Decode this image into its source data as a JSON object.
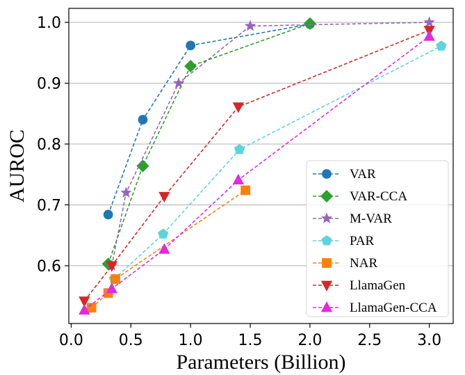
{
  "chart_data": {
    "type": "line",
    "xlabel": "Parameters (Billion)",
    "ylabel": "AUROC",
    "xlim": [
      -0.02,
      3.2
    ],
    "ylim": [
      0.505,
      1.023
    ],
    "xticks": [
      0.0,
      0.5,
      1.0,
      1.5,
      2.0,
      2.5,
      3.0
    ],
    "xtick_labels": [
      "0.0",
      "0.5",
      "1.0",
      "1.5",
      "2.0",
      "2.5",
      "3.0"
    ],
    "yticks": [
      0.6,
      0.7,
      0.8,
      0.9,
      1.0
    ],
    "ytick_labels": [
      "0.6",
      "0.7",
      "0.8",
      "0.9",
      "1.0"
    ],
    "grid": "horizontal",
    "legend_position": "bottom-right",
    "series": [
      {
        "name": "VAR",
        "color": "#1f77b4",
        "marker": "circle",
        "x": [
          0.31,
          0.6,
          1.0,
          2.0
        ],
        "y": [
          0.684,
          0.84,
          0.962,
          0.997
        ]
      },
      {
        "name": "VAR-CCA",
        "color": "#2ca02c",
        "marker": "diamond",
        "x": [
          0.31,
          0.6,
          1.0,
          2.0
        ],
        "y": [
          0.603,
          0.764,
          0.928,
          0.998
        ]
      },
      {
        "name": "M-VAR",
        "color": "#9467bd",
        "marker": "star",
        "x": [
          0.34,
          0.46,
          0.9,
          1.5,
          3.0
        ],
        "y": [
          0.6,
          0.72,
          0.9,
          0.994,
          1.0
        ]
      },
      {
        "name": "PAR",
        "color": "#5dd4dc",
        "marker": "pentagon",
        "x": [
          0.36,
          0.77,
          1.41,
          3.1
        ],
        "y": [
          0.578,
          0.652,
          0.791,
          0.961
        ]
      },
      {
        "name": "NAR",
        "color": "#ff7f0e",
        "marker": "square",
        "x": [
          0.17,
          0.31,
          0.37,
          1.46
        ],
        "y": [
          0.531,
          0.555,
          0.578,
          0.724
        ]
      },
      {
        "name": "LlamaGen",
        "color": "#d62728",
        "marker": "triangle-down",
        "x": [
          0.11,
          0.34,
          0.78,
          1.4,
          3.0
        ],
        "y": [
          0.542,
          0.6,
          0.714,
          0.861,
          0.987
        ]
      },
      {
        "name": "LlamaGen-CCA",
        "color": "#e02be0",
        "marker": "triangle-up",
        "x": [
          0.11,
          0.34,
          0.78,
          1.4,
          3.0
        ],
        "y": [
          0.527,
          0.562,
          0.627,
          0.741,
          0.977
        ]
      }
    ]
  }
}
